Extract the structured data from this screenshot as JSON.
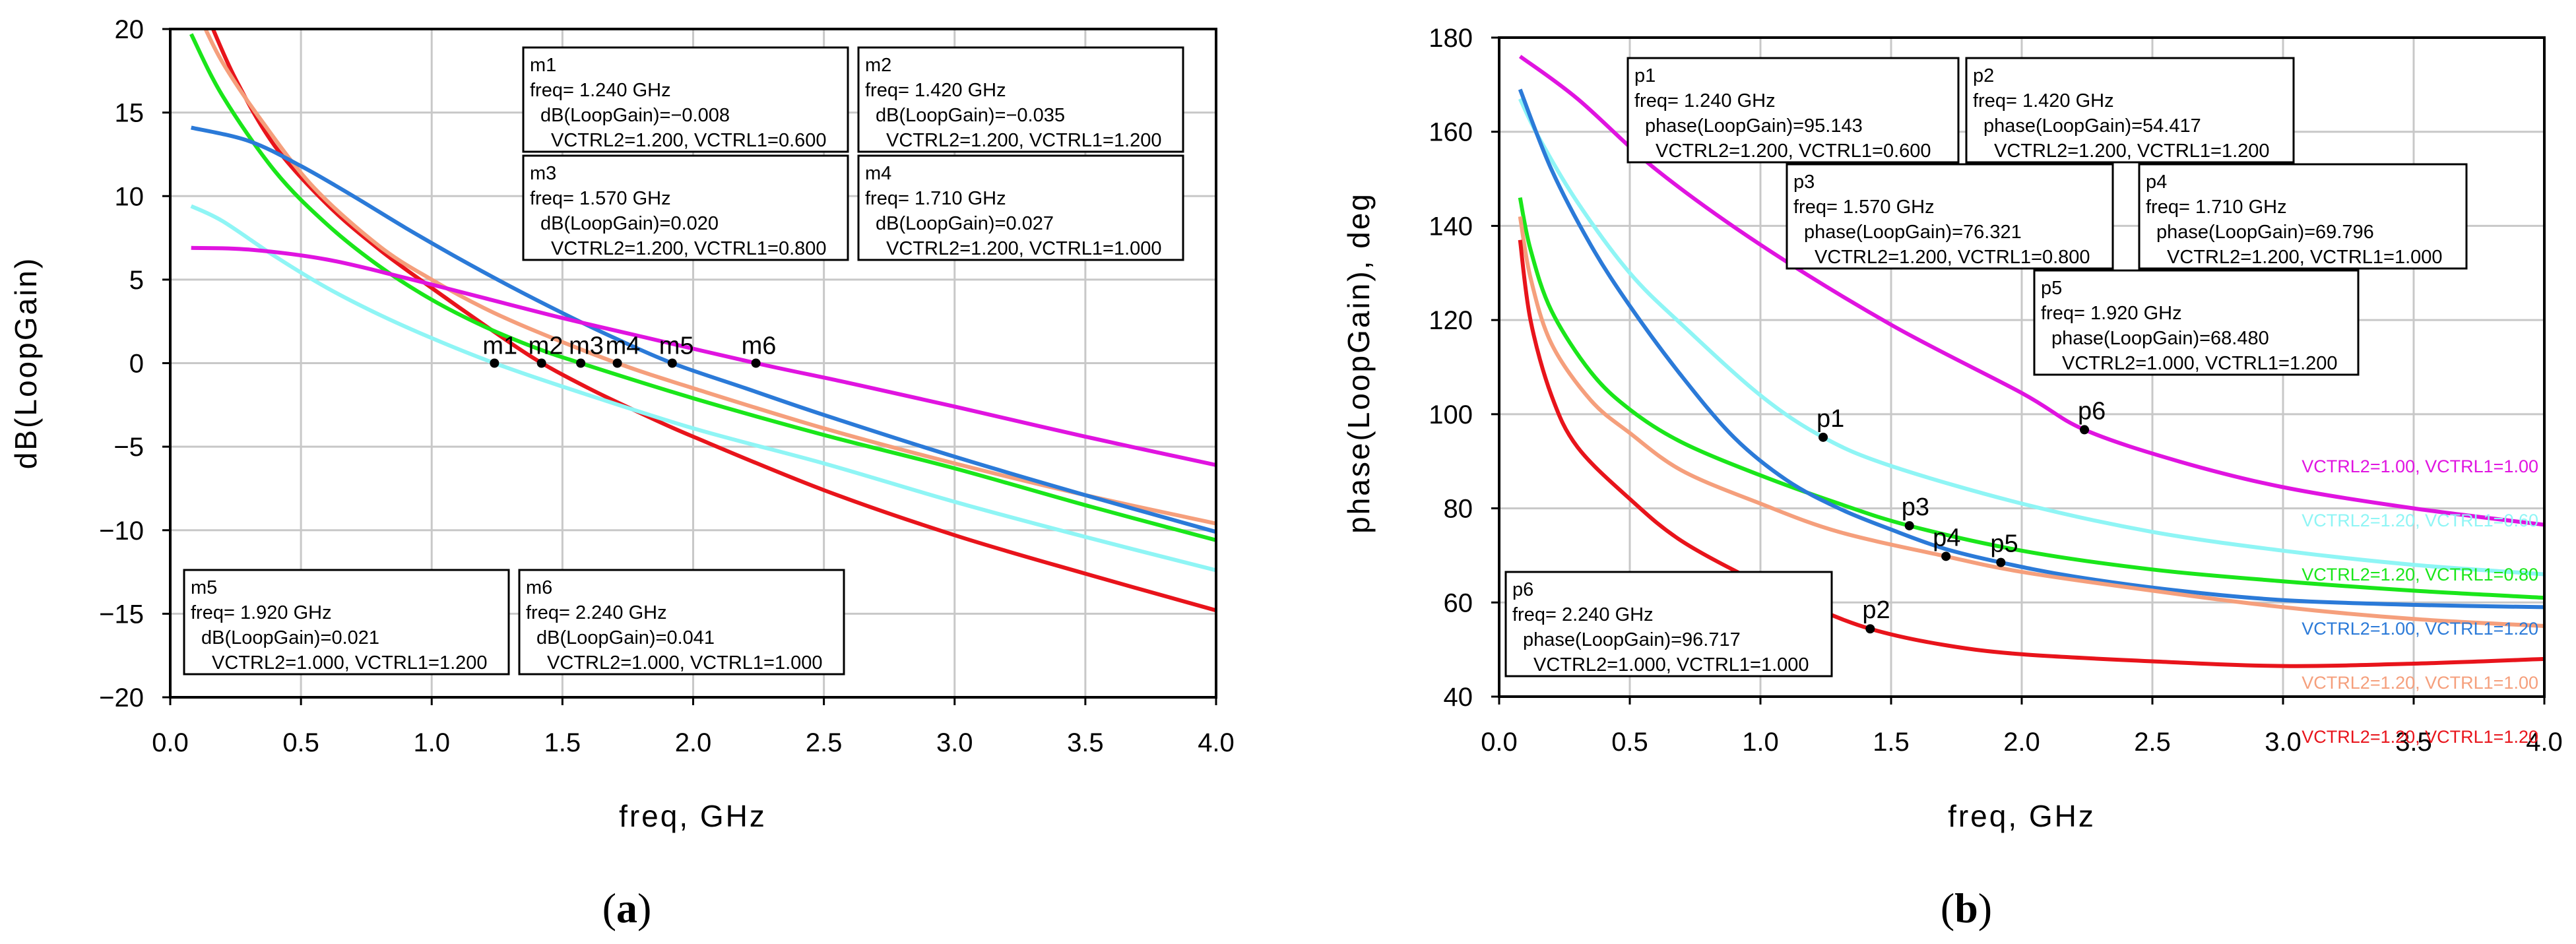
{
  "chart_data": [
    {
      "type": "line",
      "caption": "a",
      "xlabel": "freq, GHz",
      "ylabel": "dB(LoopGain)",
      "xlim": [
        0.0,
        4.0
      ],
      "ylim": [
        -20,
        20
      ],
      "xticks": [
        "0.0",
        "0.5",
        "1.0",
        "1.5",
        "2.0",
        "2.5",
        "3.0",
        "3.5",
        "4.0"
      ],
      "yticks": [
        "20",
        "15",
        "10",
        "5",
        "0",
        "-5",
        "-10",
        "-15",
        "-20"
      ],
      "grid": true,
      "series": [
        {
          "name": "VCTRL2=1.20, VCTRL1=1.20",
          "color": "#e8141b",
          "x": [
            0.15,
            0.25,
            0.4,
            0.6,
            0.8,
            1.0,
            1.2,
            1.4,
            1.6,
            1.8,
            2.0,
            2.5,
            3.0,
            3.5,
            4.0
          ],
          "y": [
            20.5,
            17,
            13,
            9.5,
            6.8,
            4.5,
            2.3,
            0.2,
            -1.5,
            -3,
            -4.4,
            -7.6,
            -10.3,
            -12.6,
            -14.8
          ]
        },
        {
          "name": "VCTRL2=1.20, VCTRL1=1.00",
          "color": "#f59f7c",
          "x": [
            0.12,
            0.2,
            0.35,
            0.55,
            0.8,
            1.0,
            1.2,
            1.4,
            1.71,
            2.0,
            2.5,
            3.0,
            3.5,
            4.0
          ],
          "y": [
            20.5,
            18,
            14.5,
            10.5,
            7,
            5,
            3.3,
            1.9,
            0.0,
            -1.5,
            -3.9,
            -6,
            -7.9,
            -9.6
          ]
        },
        {
          "name": "VCTRL2=1.20, VCTRL1=0.80",
          "color": "#1ae61a",
          "x": [
            0.08,
            0.2,
            0.4,
            0.6,
            0.8,
            1.0,
            1.2,
            1.4,
            1.57,
            2.0,
            2.5,
            3.0,
            3.5,
            4.0
          ],
          "y": [
            19.7,
            16,
            11.5,
            8.3,
            5.8,
            3.8,
            2.2,
            0.9,
            0.0,
            -2.1,
            -4.3,
            -6.3,
            -8.5,
            -10.6
          ]
        },
        {
          "name": "VCTRL2=1.00, VCTRL1=1.20",
          "color": "#2b7ad8",
          "x": [
            0.08,
            0.3,
            0.5,
            0.7,
            0.9,
            1.1,
            1.3,
            1.5,
            1.7,
            1.92,
            2.2,
            2.5,
            3.0,
            3.5,
            4.0
          ],
          "y": [
            14.1,
            13.3,
            11.8,
            10,
            8.1,
            6.3,
            4.6,
            3,
            1.5,
            0.0,
            -1.5,
            -3.1,
            -5.6,
            -7.9,
            -10.1
          ]
        },
        {
          "name": "VCTRL2=1.20, VCTRL1=0.60",
          "color": "#8ff5f5",
          "x": [
            0.08,
            0.2,
            0.4,
            0.6,
            0.8,
            1.0,
            1.24,
            1.5,
            2.0,
            2.5,
            3.0,
            3.5,
            4.0
          ],
          "y": [
            9.4,
            8.5,
            6.4,
            4.5,
            2.9,
            1.5,
            0.0,
            -1.4,
            -3.9,
            -6,
            -8.3,
            -10.4,
            -12.4
          ]
        },
        {
          "name": "VCTRL2=1.00, VCTRL1=1.00",
          "color": "#e014e0",
          "x": [
            0.08,
            0.3,
            0.6,
            0.9,
            1.2,
            1.5,
            1.8,
            2.24,
            2.6,
            3.0,
            3.5,
            4.0
          ],
          "y": [
            6.9,
            6.8,
            6.2,
            5.1,
            3.9,
            2.7,
            1.6,
            0.0,
            -1.2,
            -2.6,
            -4.4,
            -6.1
          ]
        }
      ],
      "markers": [
        {
          "name": "m1",
          "x": 1.24,
          "y": 0
        },
        {
          "name": "m2",
          "x": 1.42,
          "y": 0
        },
        {
          "name": "m3",
          "x": 1.57,
          "y": 0
        },
        {
          "name": "m4",
          "x": 1.71,
          "y": 0
        },
        {
          "name": "m5",
          "x": 1.92,
          "y": 0
        },
        {
          "name": "m6",
          "x": 2.24,
          "y": 0
        }
      ],
      "annotations": [
        {
          "id": "m1",
          "lines": [
            "m1",
            "freq= 1.240 GHz",
            "dB(LoopGain)=-0.008",
            "VCTRL2=1.200, VCTRL1=0.600"
          ]
        },
        {
          "id": "m2",
          "lines": [
            "m2",
            "freq= 1.420 GHz",
            "dB(LoopGain)=-0.035",
            "VCTRL2=1.200, VCTRL1=1.200"
          ]
        },
        {
          "id": "m3",
          "lines": [
            "m3",
            "freq= 1.570 GHz",
            "dB(LoopGain)=0.020",
            "VCTRL2=1.200, VCTRL1=0.800"
          ]
        },
        {
          "id": "m4",
          "lines": [
            "m4",
            "freq= 1.710 GHz",
            "dB(LoopGain)=0.027",
            "VCTRL2=1.200, VCTRL1=1.000"
          ]
        },
        {
          "id": "m5",
          "lines": [
            "m5",
            "freq= 1.920 GHz",
            "dB(LoopGain)=0.021",
            "VCTRL2=1.000, VCTRL1=1.200"
          ]
        },
        {
          "id": "m6",
          "lines": [
            "m6",
            "freq= 2.240 GHz",
            "dB(LoopGain)=0.041",
            "VCTRL2=1.000, VCTRL1=1.000"
          ]
        }
      ]
    },
    {
      "type": "line",
      "caption": "b",
      "xlabel": "freq, GHz",
      "ylabel": "phase(LoopGain), deg",
      "xlim": [
        0.0,
        4.0
      ],
      "ylim": [
        40,
        180
      ],
      "xticks": [
        "0.0",
        "0.5",
        "1.0",
        "1.5",
        "2.0",
        "2.5",
        "3.0",
        "3.5",
        "4.0"
      ],
      "yticks": [
        "180",
        "160",
        "140",
        "120",
        "100",
        "80",
        "60",
        "40"
      ],
      "grid": true,
      "series": [
        {
          "name": "VCTRL2=1.00, VCTRL1=1.00",
          "color": "#e014e0",
          "x": [
            0.08,
            0.3,
            0.6,
            1.0,
            1.5,
            2.0,
            2.24,
            2.6,
            3.0,
            3.5,
            4.0
          ],
          "y": [
            176,
            167,
            152,
            136,
            119,
            104.5,
            96.7,
            90,
            84.5,
            80,
            76.5
          ]
        },
        {
          "name": "VCTRL2=1.20, VCTRL1=0.60",
          "color": "#8ff5f5",
          "x": [
            0.08,
            0.15,
            0.3,
            0.5,
            0.7,
            1.0,
            1.24,
            1.5,
            2.0,
            2.5,
            3.0,
            3.5,
            4.0
          ],
          "y": [
            167,
            159,
            145,
            130,
            119,
            104,
            95.1,
            89,
            81,
            75,
            71,
            68,
            66
          ]
        },
        {
          "name": "VCTRL2=1.20, VCTRL1=0.80",
          "color": "#1ae61a",
          "x": [
            0.08,
            0.12,
            0.2,
            0.35,
            0.5,
            0.7,
            1.0,
            1.3,
            1.57,
            2.0,
            2.5,
            3.0,
            3.5,
            4.0
          ],
          "y": [
            146,
            135,
            122,
            109,
            101,
            94,
            87,
            81,
            76.3,
            71,
            67,
            64.5,
            62.5,
            61
          ]
        },
        {
          "name": "VCTRL2=1.00, VCTRL1=1.20",
          "color": "#2b7ad8",
          "x": [
            0.08,
            0.2,
            0.35,
            0.5,
            0.7,
            0.9,
            1.1,
            1.3,
            1.5,
            1.7,
            1.92,
            2.2,
            2.6,
            3.0,
            3.5,
            4.0
          ],
          "y": [
            169,
            152,
            136,
            123,
            108,
            95,
            86,
            80,
            75.5,
            71.5,
            68.5,
            65.5,
            62.5,
            60.5,
            59.5,
            59
          ]
        },
        {
          "name": "VCTRL2=1.20, VCTRL1=1.00",
          "color": "#f59f7c",
          "x": [
            0.08,
            0.12,
            0.2,
            0.35,
            0.5,
            0.7,
            1.0,
            1.3,
            1.71,
            2.0,
            2.5,
            3.0,
            3.5,
            4.0
          ],
          "y": [
            142,
            129,
            115,
            103,
            96,
            88,
            81,
            75,
            69.8,
            66.5,
            62.5,
            59,
            56.5,
            55
          ]
        },
        {
          "name": "VCTRL2=1.20, VCTRL1=1.20",
          "color": "#e8141b",
          "x": [
            0.08,
            0.12,
            0.2,
            0.3,
            0.5,
            0.7,
            1.0,
            1.2,
            1.42,
            1.7,
            2.0,
            2.5,
            3.0,
            3.5,
            4.0
          ],
          "y": [
            137,
            120,
            104,
            93,
            82,
            73,
            64,
            59,
            54.4,
            51,
            49,
            47.5,
            46.5,
            47,
            48
          ]
        }
      ],
      "markers": [
        {
          "name": "p1",
          "x": 1.24,
          "y": 95.1
        },
        {
          "name": "p2",
          "x": 1.42,
          "y": 54.4
        },
        {
          "name": "p3",
          "x": 1.57,
          "y": 76.3
        },
        {
          "name": "p4",
          "x": 1.71,
          "y": 69.8
        },
        {
          "name": "p5",
          "x": 1.92,
          "y": 68.5
        },
        {
          "name": "p6",
          "x": 2.24,
          "y": 96.7
        }
      ],
      "legend": [
        {
          "text": "VCTRL2=1.00, VCTRL1=1.00",
          "color": "#e014e0"
        },
        {
          "text": "VCTRL2=1.20, VCTRL1=0.60",
          "color": "#8ff5f5"
        },
        {
          "text": "VCTRL2=1.20, VCTRL1=0.80",
          "color": "#1ae61a"
        },
        {
          "text": "VCTRL2=1.00, VCTRL1=1.20",
          "color": "#2b7ad8"
        },
        {
          "text": "VCTRL2=1.20, VCTRL1=1.00",
          "color": "#f59f7c"
        },
        {
          "text": "VCTRL2=1.20, VCTRL1=1.20",
          "color": "#e8141b"
        }
      ],
      "annotations": [
        {
          "id": "p1",
          "lines": [
            "p1",
            "freq= 1.240 GHz",
            "phase(LoopGain)=95.143",
            "VCTRL2=1.200, VCTRL1=0.600"
          ]
        },
        {
          "id": "p2",
          "lines": [
            "p2",
            "freq= 1.420 GHz",
            "phase(LoopGain)=54.417",
            "VCTRL2=1.200, VCTRL1=1.200"
          ]
        },
        {
          "id": "p3",
          "lines": [
            "p3",
            "freq= 1.570 GHz",
            "phase(LoopGain)=76.321",
            "VCTRL2=1.200, VCTRL1=0.800"
          ]
        },
        {
          "id": "p4",
          "lines": [
            "p4",
            "freq= 1.710 GHz",
            "phase(LoopGain)=69.796",
            "VCTRL2=1.200, VCTRL1=1.000"
          ]
        },
        {
          "id": "p5",
          "lines": [
            "p5",
            "freq= 1.920 GHz",
            "phase(LoopGain)=68.480",
            "VCTRL2=1.000, VCTRL1=1.200"
          ]
        },
        {
          "id": "p6",
          "lines": [
            "p6",
            "freq= 2.240 GHz",
            "phase(LoopGain)=96.717",
            "VCTRL2=1.000, VCTRL1=1.000"
          ]
        }
      ]
    }
  ]
}
